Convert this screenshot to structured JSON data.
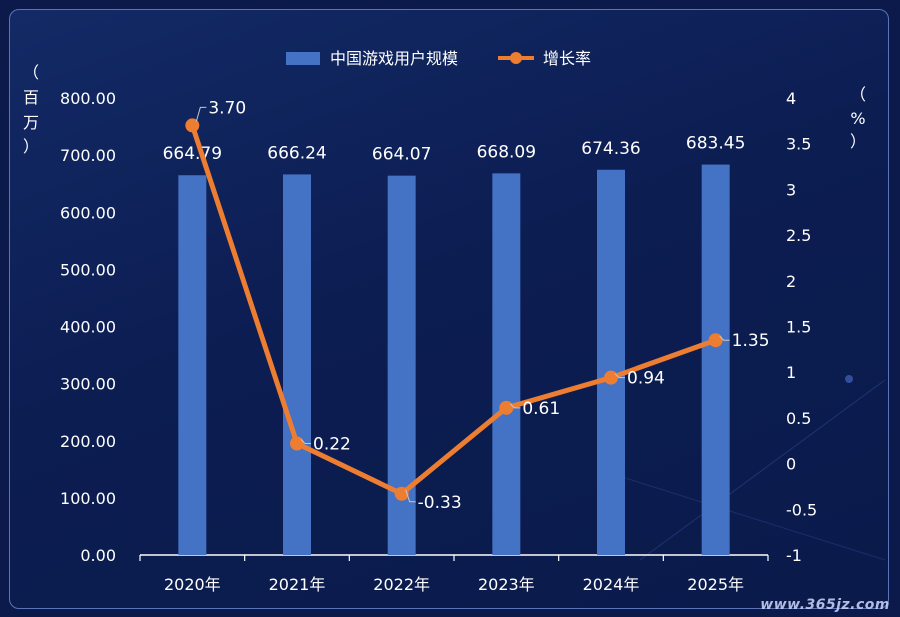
{
  "chart_data": {
    "type": "bar",
    "categories": [
      "2020年",
      "2021年",
      "2022年",
      "2023年",
      "2024年",
      "2025年"
    ],
    "series": [
      {
        "name": "中国游戏用户规模",
        "type": "bar",
        "axis": "left",
        "values": [
          664.79,
          666.24,
          664.07,
          668.09,
          674.36,
          683.45
        ],
        "labels": [
          "664.79",
          "666.24",
          "664.07",
          "668.09",
          "674.36",
          "683.45"
        ]
      },
      {
        "name": "增长率",
        "type": "line",
        "axis": "right",
        "values": [
          3.7,
          0.22,
          -0.33,
          0.61,
          0.94,
          1.35
        ],
        "labels": [
          "3.70",
          "0.22",
          "-0.33",
          "0.61",
          "0.94",
          "1.35"
        ]
      }
    ],
    "y_left": {
      "label_chars": [
        "（",
        "百",
        "万",
        "）"
      ],
      "ticks": [
        "0.00",
        "100.00",
        "200.00",
        "300.00",
        "400.00",
        "500.00",
        "600.00",
        "700.00",
        "800.00"
      ],
      "ylim": [
        0,
        800
      ]
    },
    "y_right": {
      "label_chars": [
        "（",
        "%",
        "）"
      ],
      "ticks": [
        "-1",
        "-0.5",
        "0",
        "0.5",
        "1",
        "1.5",
        "2",
        "2.5",
        "3",
        "3.5",
        "4"
      ],
      "ylim": [
        -1,
        4
      ]
    },
    "legend_position": "top-center",
    "grid": false,
    "colors": {
      "bar": "#4472c4",
      "line": "#ed7d31",
      "text": "#ffffff",
      "axis": "#ffffff"
    }
  },
  "watermark": "www.365jz.com"
}
